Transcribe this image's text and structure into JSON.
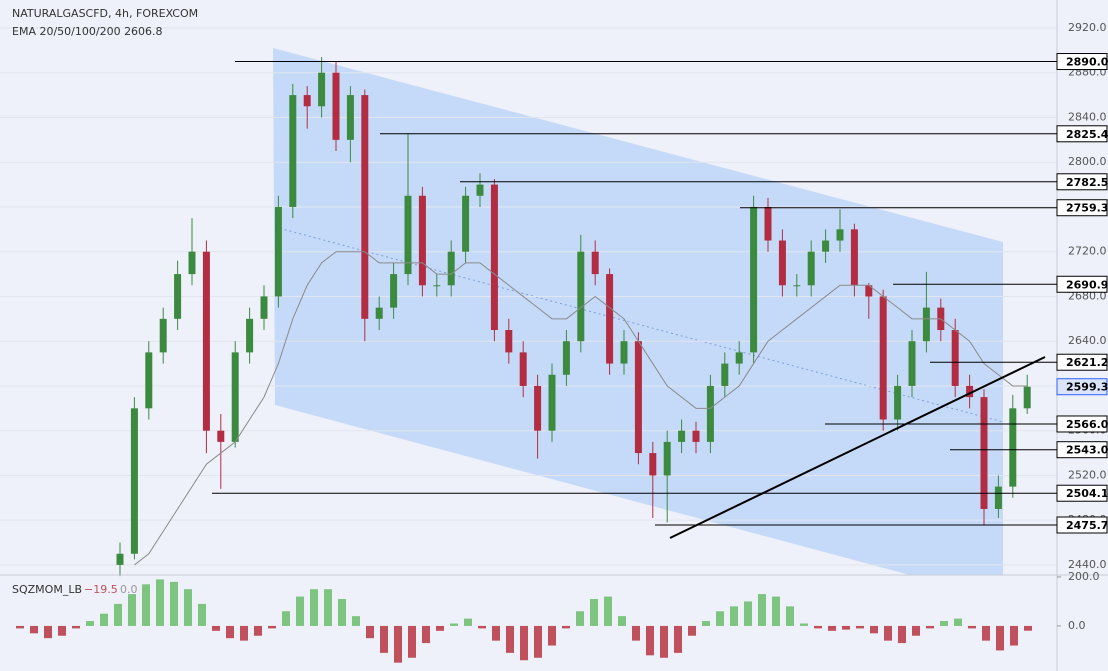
{
  "chart_data": [
    {
      "type": "candlestick",
      "title": "NATURALGASCFD, 4h, FOREXCOM",
      "subtitle": "EMA 20/50/100/200  2606.8",
      "up_color": "#3c8a3f",
      "down_color": "#b22c42",
      "open": [
        2440,
        2450,
        2580,
        2630,
        2660,
        2700,
        2720,
        2560,
        2550,
        2630,
        2660,
        2680,
        2760,
        2860,
        2850,
        2880,
        2820,
        2860,
        2660,
        2670,
        2700,
        2770,
        2690,
        2690,
        2720,
        2770,
        2780,
        2650,
        2630,
        2600,
        2560,
        2610,
        2640,
        2720,
        2700,
        2620,
        2640,
        2540,
        2520,
        2550,
        2560,
        2550,
        2600,
        2620,
        2630,
        2760,
        2730,
        2690,
        2690,
        2720,
        2730,
        2740,
        2690,
        2680,
        2570,
        2600,
        2640,
        2670,
        2650,
        2600,
        2590,
        2490,
        2510,
        2580
      ],
      "high": [
        2460,
        2590,
        2640,
        2670,
        2712,
        2750,
        2730,
        2575,
        2640,
        2670,
        2690,
        2770,
        2870,
        2868,
        2894,
        2890,
        2868,
        2865,
        2680,
        2710,
        2826,
        2778,
        2700,
        2730,
        2778,
        2790,
        2785,
        2660,
        2640,
        2610,
        2620,
        2650,
        2735,
        2730,
        2705,
        2650,
        2648,
        2550,
        2560,
        2570,
        2568,
        2610,
        2630,
        2640,
        2770,
        2768,
        2740,
        2700,
        2730,
        2740,
        2758,
        2745,
        2692,
        2686,
        2610,
        2650,
        2702,
        2678,
        2660,
        2610,
        2597,
        2520,
        2592,
        2610
      ],
      "low": [
        2430,
        2445,
        2570,
        2620,
        2650,
        2690,
        2540,
        2508,
        2545,
        2620,
        2650,
        2670,
        2750,
        2830,
        2840,
        2810,
        2800,
        2640,
        2650,
        2660,
        2690,
        2680,
        2680,
        2680,
        2710,
        2760,
        2640,
        2620,
        2590,
        2535,
        2550,
        2600,
        2630,
        2690,
        2610,
        2610,
        2530,
        2482,
        2478,
        2540,
        2540,
        2540,
        2590,
        2610,
        2620,
        2720,
        2680,
        2680,
        2680,
        2710,
        2720,
        2680,
        2660,
        2560,
        2560,
        2590,
        2630,
        2640,
        2590,
        2580,
        2476,
        2482,
        2500,
        2575
      ],
      "close": [
        2450,
        2580,
        2630,
        2660,
        2700,
        2720,
        2560,
        2550,
        2630,
        2660,
        2680,
        2760,
        2860,
        2850,
        2880,
        2820,
        2860,
        2660,
        2670,
        2700,
        2770,
        2690,
        2690,
        2720,
        2770,
        2780,
        2650,
        2630,
        2600,
        2560,
        2610,
        2640,
        2720,
        2700,
        2620,
        2640,
        2540,
        2520,
        2550,
        2560,
        2550,
        2600,
        2620,
        2630,
        2760,
        2730,
        2690,
        2690,
        2720,
        2730,
        2740,
        2690,
        2680,
        2570,
        2600,
        2640,
        2670,
        2650,
        2600,
        2590,
        2490,
        2510,
        2580,
        2599.3
      ],
      "ema": {
        "color": "#8a8a8a",
        "values": [
          null,
          2440,
          2450,
          2470,
          2490,
          2510,
          2530,
          2540,
          2550,
          2570,
          2590,
          2620,
          2660,
          2690,
          2710,
          2720,
          2720,
          2720,
          2710,
          2710,
          2710,
          2710,
          2700,
          2700,
          2710,
          2710,
          2700,
          2690,
          2680,
          2670,
          2660,
          2660,
          2670,
          2680,
          2670,
          2660,
          2640,
          2620,
          2600,
          2590,
          2580,
          2580,
          2590,
          2600,
          2620,
          2640,
          2650,
          2660,
          2670,
          2680,
          2690,
          2690,
          2690,
          2680,
          2670,
          2660,
          2660,
          2660,
          2650,
          2640,
          2620,
          2610,
          2600,
          2600
        ]
      },
      "ylim": [
        2431,
        2945
      ],
      "yticks": [
        {
          "value": 2440,
          "label": "2440.0"
        },
        {
          "value": 2480,
          "label": "2480.0"
        },
        {
          "value": 2520,
          "label": "2520.0"
        },
        {
          "value": 2560,
          "label": "2560.0"
        },
        {
          "value": 2600,
          "label": "2600.0"
        },
        {
          "value": 2640,
          "label": "2640.0"
        },
        {
          "value": 2680,
          "label": "2680.0"
        },
        {
          "value": 2720,
          "label": "2720.0"
        },
        {
          "value": 2760,
          "label": "2760.0"
        },
        {
          "value": 2800,
          "label": "2800.0"
        },
        {
          "value": 2840,
          "label": "2840.0"
        },
        {
          "value": 2880,
          "label": "2880.0"
        },
        {
          "value": 2920,
          "label": "2920.0"
        }
      ],
      "levels": [
        {
          "value": 2890,
          "label": "2890.0"
        },
        {
          "value": 2825.4,
          "label": "2825.4"
        },
        {
          "value": 2782.5,
          "label": "2782.5"
        },
        {
          "value": 2759.3,
          "label": "2759.3"
        },
        {
          "value": 2690.9,
          "label": "2690.9"
        },
        {
          "value": 2621.2,
          "label": "2621.2"
        },
        {
          "value": 2566,
          "label": "2566.0"
        },
        {
          "value": 2543,
          "label": "2543.0"
        },
        {
          "value": 2504.1,
          "label": "2504.1"
        },
        {
          "value": 2475.7,
          "label": "2475.7"
        }
      ],
      "current_price": {
        "value": 2599.3,
        "label": "2599.3",
        "color": "#2962ff"
      }
    },
    {
      "type": "bar",
      "title": "SQZMOM_LB",
      "last_value": {
        "value": -19.5,
        "label": "−19.5"
      },
      "second_value": {
        "value": 0,
        "label": "0.0"
      },
      "positive_color": "#7cc47f",
      "negative_color": "#c0505c",
      "values": [
        -10,
        -30,
        -50,
        -40,
        -10,
        20,
        50,
        90,
        130,
        170,
        190,
        180,
        150,
        90,
        -20,
        -50,
        -60,
        -40,
        -10,
        60,
        120,
        150,
        150,
        110,
        40,
        -50,
        -110,
        -150,
        -130,
        -70,
        -20,
        10,
        30,
        -10,
        -60,
        -110,
        -140,
        -130,
        -80,
        -10,
        60,
        110,
        120,
        40,
        -60,
        -120,
        -130,
        -110,
        -40,
        20,
        60,
        80,
        100,
        130,
        120,
        80,
        10,
        -10,
        -20,
        -15,
        -10,
        -30,
        -60,
        -70,
        -40,
        -10,
        20,
        30,
        -10,
        -60,
        -100,
        -80,
        -19.5
      ],
      "ylim": [
        -184,
        208
      ],
      "yticks": [
        {
          "value": 200,
          "label": "200.0"
        },
        {
          "value": 0,
          "label": "0.0"
        }
      ]
    }
  ]
}
